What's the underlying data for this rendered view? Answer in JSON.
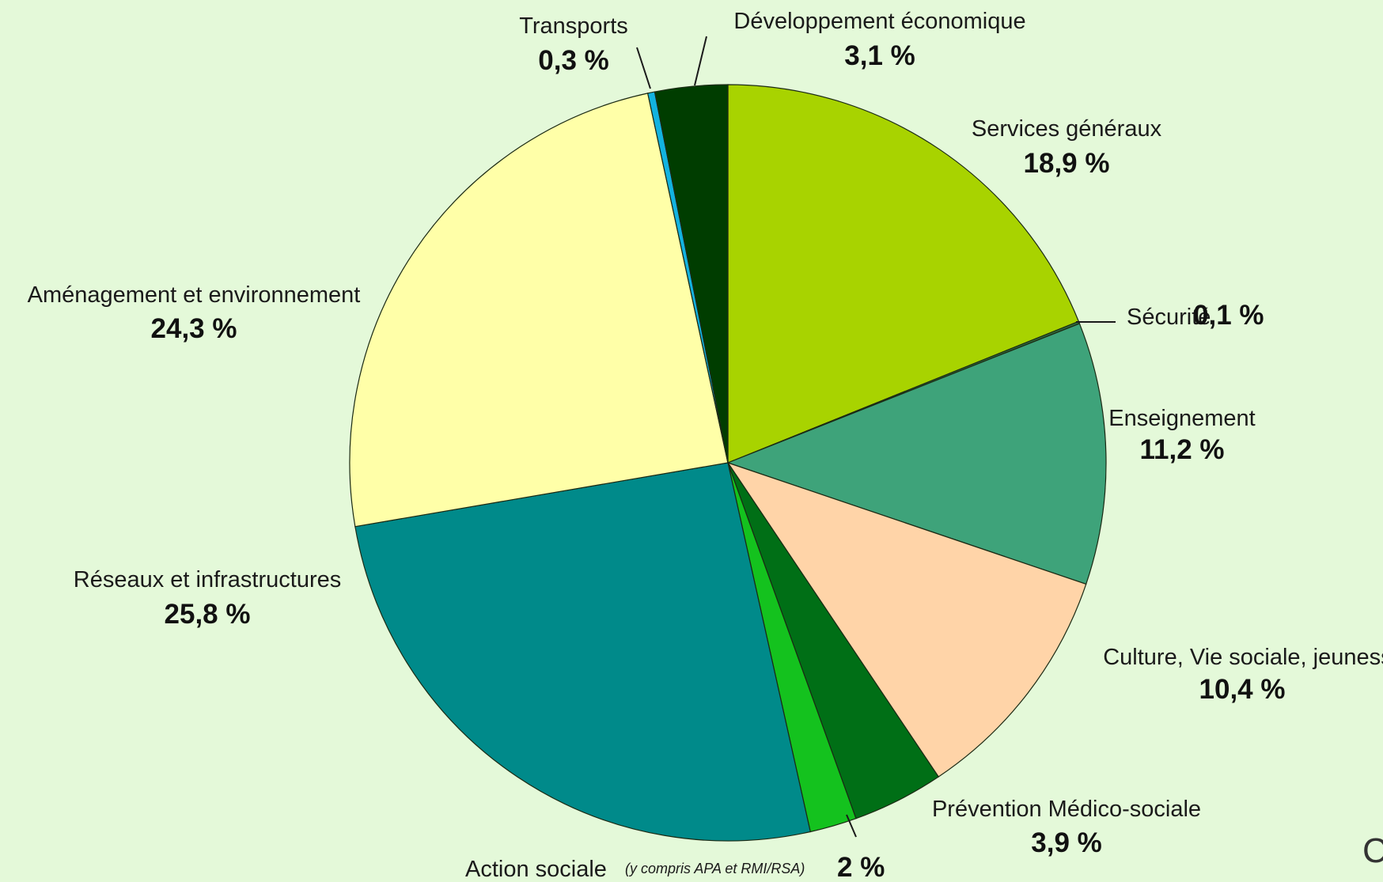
{
  "chart_data": {
    "type": "pie",
    "title": "",
    "start": "12 o'clock",
    "direction": "clockwise",
    "slices": [
      {
        "label": "Services généraux",
        "value": 18.9,
        "value_label": "18,9 %",
        "color": "#a8d300"
      },
      {
        "label": "Sécurité",
        "value": 0.1,
        "value_label": "0,1 %",
        "color": "#2f6b3c"
      },
      {
        "label": "Enseignement",
        "value": 11.2,
        "value_label": "11,2 %",
        "color": "#3ea37a"
      },
      {
        "label": "Culture, Vie sociale, jeunesse",
        "value": 10.4,
        "value_label": "10,4 %",
        "color": "#ffd4a8"
      },
      {
        "label": "Prévention Médico-sociale",
        "value": 3.9,
        "value_label": "3,9 %",
        "color": "#006f16"
      },
      {
        "label": "Action sociale",
        "note": "(y compris APA et RMI/RSA)",
        "value": 2,
        "value_label": "2 %",
        "color": "#14c21e"
      },
      {
        "label": "Réseaux et infrastructures",
        "value": 25.8,
        "value_label": "25,8 %",
        "color": "#008a8a"
      },
      {
        "label": "Aménagement et environnement",
        "value": 24.3,
        "value_label": "24,3 %",
        "color": "#ffffa8"
      },
      {
        "label": "Transports",
        "value": 0.3,
        "value_label": "0,3 %",
        "color": "#12b3e0"
      },
      {
        "label": "Développement économique",
        "value": 3.1,
        "value_label": "3,1 %",
        "color": "#003d00"
      }
    ]
  },
  "partial_glyph": "C"
}
